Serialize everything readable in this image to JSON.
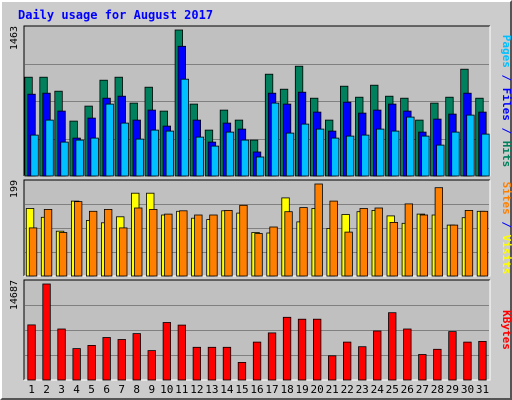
{
  "chart_data": {
    "type": "bar",
    "title": "Daily usage for August 2017",
    "x": {
      "days": [
        "1",
        "2",
        "3",
        "4",
        "5",
        "6",
        "7",
        "8",
        "9",
        "10",
        "11",
        "12",
        "13",
        "14",
        "15",
        "16",
        "17",
        "18",
        "19",
        "20",
        "21",
        "22",
        "23",
        "24",
        "25",
        "26",
        "27",
        "28",
        "29",
        "30",
        "31"
      ],
      "weekend_days": [
        "5",
        "6",
        "12",
        "13",
        "19",
        "20",
        "26",
        "27"
      ]
    },
    "colors": {
      "hits": "#00805c",
      "files": "#0000ff",
      "pages": "#00c0ff",
      "visits": "#ffff00",
      "sites": "#ff8000",
      "kbytes": "#ff0000",
      "weekend_label": "#00805c",
      "plot_bg": "#c0c0c0",
      "frame_bg": "#cccccc",
      "title": "#0000ff"
    },
    "panels": [
      {
        "label_parts": [
          {
            "text": "Pages",
            "color": "#00c0ff"
          },
          {
            "text": " / ",
            "color": "#0000ff"
          },
          {
            "text": "Files",
            "color": "#0000ff"
          },
          {
            "text": " / ",
            "color": "#0000ff"
          },
          {
            "text": "Hits",
            "color": "#00805c"
          }
        ],
        "ymax_label": "1463",
        "ylim": [
          0,
          1463
        ],
        "series": [
          {
            "name": "Hits",
            "color": "#00805c",
            "values": [
              990,
              990,
              850,
              550,
              700,
              960,
              990,
              730,
              890,
              650,
              1463,
              720,
              460,
              660,
              560,
              360,
              1020,
              870,
              1100,
              780,
              560,
              900,
              790,
              910,
              800,
              780,
              560,
              730,
              790,
              1070,
              780
            ]
          },
          {
            "name": "Files",
            "color": "#0000ff",
            "values": [
              820,
              830,
              650,
              380,
              580,
              780,
              800,
              560,
              660,
              500,
              1300,
              560,
              340,
              530,
              470,
              240,
              830,
              720,
              840,
              640,
              450,
              740,
              630,
              660,
              720,
              650,
              440,
              570,
              620,
              830,
              640
            ]
          },
          {
            "name": "Pages",
            "color": "#00c0ff",
            "values": [
              410,
              560,
              340,
              360,
              380,
              720,
              530,
              370,
              460,
              450,
              970,
              390,
              300,
              440,
              360,
              190,
              730,
              430,
              520,
              470,
              380,
              400,
              410,
              470,
              450,
              590,
              400,
              310,
              440,
              610,
              420
            ]
          }
        ]
      },
      {
        "label_parts": [
          {
            "text": "Sites",
            "color": "#ff8000"
          },
          {
            "text": " / ",
            "color": "#0000ff"
          },
          {
            "text": "Visits",
            "color": "#ffff00"
          }
        ],
        "ymax_label": "199",
        "ylim": [
          0,
          199
        ],
        "series": [
          {
            "name": "Visits",
            "color": "#ffff00",
            "values": [
              146,
              127,
              97,
              162,
              120,
              115,
              128,
              179,
              179,
              132,
              140,
              125,
              122,
              141,
              136,
              94,
              93,
              169,
              117,
              146,
              103,
              133,
              139,
              142,
              130,
              114,
              134,
              132,
              110,
              126,
              140
            ]
          },
          {
            "name": "Sites",
            "color": "#ff8000",
            "values": [
              104,
              144,
              94,
              161,
              140,
              144,
              104,
              147,
              144,
              134,
              141,
              132,
              132,
              142,
              153,
              92,
              106,
              139,
              148,
              199,
              162,
              95,
              146,
              147,
              116,
              156,
              132,
              191,
              110,
              142,
              140
            ]
          }
        ]
      },
      {
        "label_parts": [
          {
            "text": "KBytes",
            "color": "#ff0000"
          }
        ],
        "ymax_label": "14687",
        "ylim": [
          0,
          14687
        ],
        "series": [
          {
            "name": "KBytes",
            "color": "#ff0000",
            "values": [
              8430,
              14687,
              7800,
              4800,
              5300,
              6500,
              6200,
              7100,
              4500,
              8800,
              8400,
              5000,
              5000,
              5000,
              2700,
              5800,
              7200,
              9600,
              9300,
              9300,
              3700,
              5800,
              5100,
              7500,
              10300,
              7800,
              3900,
              4700,
              7400,
              5800,
              5900
            ]
          }
        ]
      }
    ]
  }
}
